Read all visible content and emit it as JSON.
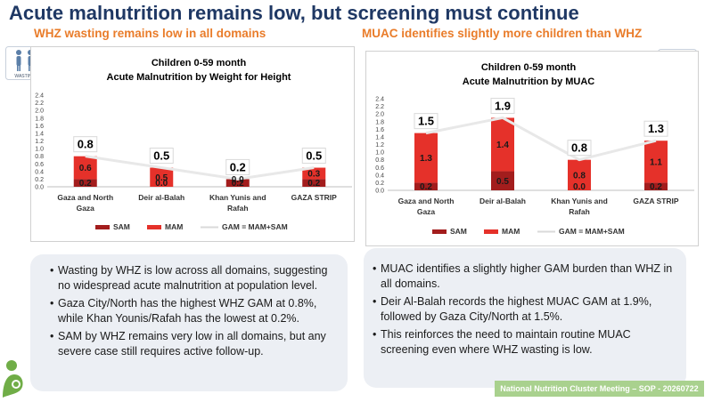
{
  "title": "Acute malnutrition remains low, but screening must continue",
  "left": {
    "subtitle": "WHZ wasting remains low in all domains",
    "bullets": [
      "Wasting by WHZ is low across all domains, suggesting no widespread acute malnutrition at population level.",
      "Gaza City/North has the highest WHZ GAM at 0.8%, while Khan Younis/Rafah has the lowest at 0.2%.",
      "SAM by WHZ remains very low in all domains, but any severe case still requires active follow-up."
    ]
  },
  "right": {
    "subtitle": "MUAC identifies slightly more children than WHZ",
    "bullets": [
      "MUAC identifies a slightly higher GAM burden than WHZ in all domains.",
      "Deir Al-Balah records the highest MUAC GAM at 1.9%, followed by Gaza City/North at 1.5%.",
      "This reinforces the need to maintain routine MUAC screening even where WHZ wasting is low."
    ]
  },
  "icon_label": "WASTING",
  "footer": "National Nutrition Cluster Meeting – SOP - 20260722",
  "colors": {
    "title": "#1f3864",
    "subtitle": "#e97c2a",
    "sam": "#a31d1d",
    "mam": "#e5312a",
    "gam_line": "#e8e8e8",
    "footer_bg": "#a9d18e",
    "panel_bg": "#eceff4"
  },
  "chart_data": [
    {
      "type": "bar",
      "stacked": true,
      "title": "Children 0-59 month",
      "subtitle": "Acute Malnutrition by Weight for Height",
      "categories": [
        [
          "Gaza and North",
          "Gaza"
        ],
        [
          "Deir al-Balah"
        ],
        [
          "Khan Yunis and",
          "Rafah"
        ],
        [
          "GAZA STRIP"
        ]
      ],
      "series": [
        {
          "name": "SAM",
          "values": [
            0.2,
            0.0,
            0.2,
            0.2
          ],
          "labels": [
            "0.2",
            "0.0",
            "0.2",
            "0.2"
          ]
        },
        {
          "name": "MAM",
          "values": [
            0.6,
            0.5,
            0.0,
            0.3
          ],
          "labels": [
            "0.6",
            "0.5",
            "0.0",
            "0.3"
          ]
        }
      ],
      "line": {
        "name": "GAM = MAM+SAM",
        "values": [
          0.8,
          0.5,
          0.2,
          0.5
        ],
        "labels": [
          "0.8",
          "0.5",
          "0.2",
          "0.5"
        ]
      },
      "yticks": [
        "0.0",
        "0.2",
        "0.4",
        "0.6",
        "0.8",
        "1.0",
        "1.2",
        "1.4",
        "1.6",
        "1.8",
        "2.0",
        "2.2",
        "2.4"
      ],
      "ylim": [
        0,
        2.4
      ],
      "legend": "bottom"
    },
    {
      "type": "bar",
      "stacked": true,
      "title": "Children 0-59 month",
      "subtitle": "Acute Malnutrition by MUAC",
      "categories": [
        [
          "Gaza and North",
          "Gaza"
        ],
        [
          "Deir al-Balah"
        ],
        [
          "Khan Yunis and",
          "Rafah"
        ],
        [
          "GAZA STRIP"
        ]
      ],
      "series": [
        {
          "name": "SAM",
          "values": [
            0.2,
            0.5,
            0.0,
            0.2
          ],
          "labels": [
            "0.2",
            "0.5",
            "0.0",
            "0.2"
          ]
        },
        {
          "name": "MAM",
          "values": [
            1.3,
            1.4,
            0.8,
            1.1
          ],
          "labels": [
            "1.3",
            "1.4",
            "0.8",
            "1.1"
          ]
        }
      ],
      "line": {
        "name": "GAM = MAM+SAM",
        "values": [
          1.5,
          1.9,
          0.8,
          1.3
        ],
        "labels": [
          "1.5",
          "1.9",
          "0.8",
          "1.3"
        ]
      },
      "yticks": [
        "0.0",
        "0.2",
        "0.4",
        "0.6",
        "0.8",
        "1.0",
        "1.2",
        "1.4",
        "1.6",
        "1.8",
        "2.0",
        "2.2",
        "2.4"
      ],
      "ylim": [
        0,
        2.4
      ],
      "legend": "bottom"
    }
  ]
}
